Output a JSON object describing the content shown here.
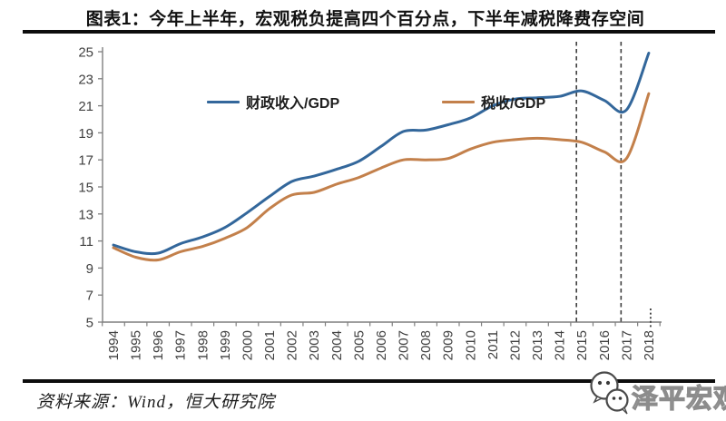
{
  "page": {
    "title": "图表1：今年上半年，宏观税负提高四个百分点，下半年减税降费存空间",
    "source": "资料来源：Wind，恒大研究院",
    "watermark": {
      "text": "泽平宏观",
      "icon": "wechat-chat-bubbles-icon"
    }
  },
  "chart_data": {
    "type": "line",
    "title": "",
    "xlabel": "",
    "ylabel": "",
    "x": [
      1994,
      1995,
      1996,
      1997,
      1998,
      1999,
      2000,
      2001,
      2002,
      2003,
      2004,
      2005,
      2006,
      2007,
      2008,
      2009,
      2010,
      2011,
      2012,
      2013,
      2014,
      2015,
      2016,
      2017,
      2018
    ],
    "series": [
      {
        "name": "财政收入/GDP",
        "color": "#33679B",
        "values": [
          10.7,
          10.2,
          10.1,
          10.8,
          11.3,
          12.0,
          13.1,
          14.3,
          15.4,
          15.8,
          16.3,
          16.9,
          18.0,
          19.1,
          19.2,
          19.6,
          20.1,
          21.0,
          21.5,
          21.6,
          21.7,
          22.1,
          21.4,
          20.7,
          24.9
        ]
      },
      {
        "name": "税收/GDP",
        "color": "#C3804B",
        "values": [
          10.5,
          9.8,
          9.6,
          10.2,
          10.6,
          11.2,
          12.0,
          13.4,
          14.4,
          14.6,
          15.2,
          15.7,
          16.4,
          17.0,
          17.0,
          17.1,
          17.8,
          18.3,
          18.5,
          18.6,
          18.5,
          18.3,
          17.6,
          17.1,
          21.9
        ]
      }
    ],
    "ylim": [
      5,
      25
    ],
    "yticks": [
      5,
      7,
      9,
      11,
      13,
      15,
      17,
      19,
      21,
      23,
      25
    ],
    "grid": false,
    "legend_position": "top-inside",
    "axis_color": "#7f7f7f",
    "tick_label_color": "#404040",
    "annotations": {
      "dashed_vlines_x": [
        2015,
        2017
      ],
      "dotted_axis_tick_x": 2018,
      "dashed_line_color": "#3f3f3f"
    }
  }
}
